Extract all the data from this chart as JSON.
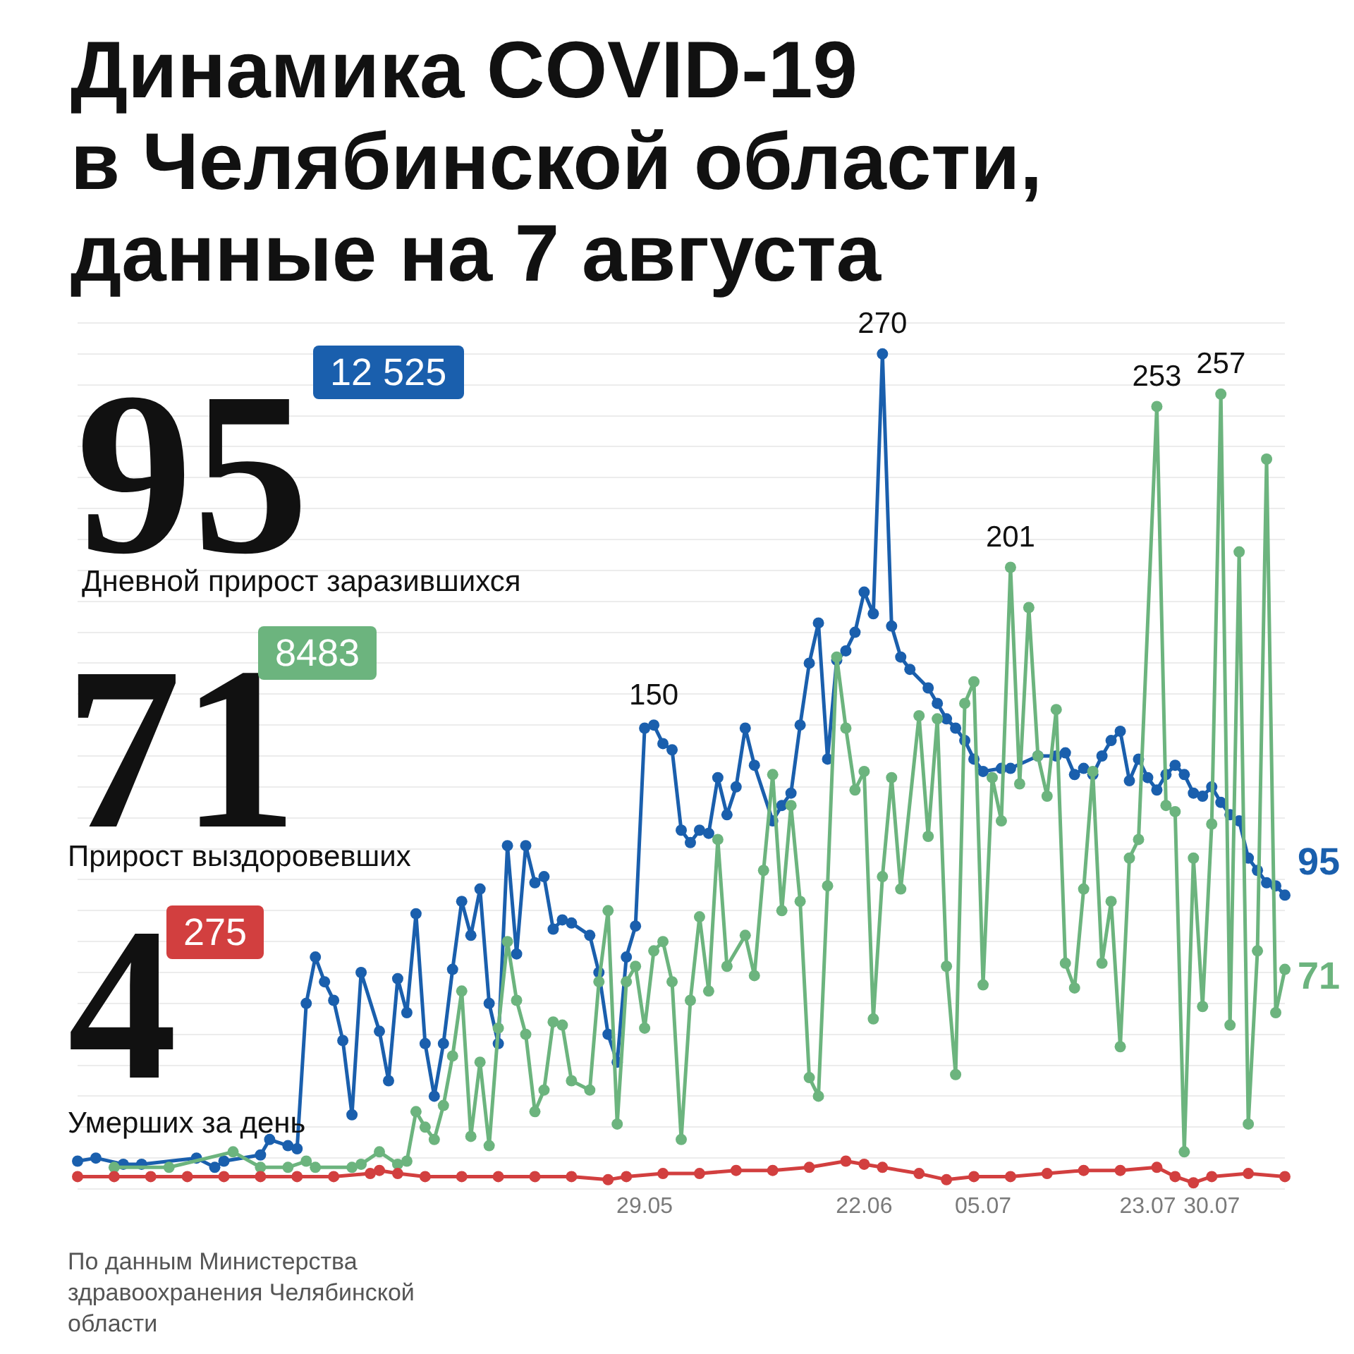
{
  "chart_data": {
    "type": "line",
    "title": "Динамика COVID-19\nв Челябинской области,\nданные на 7 августа",
    "annotations": [
      "95",
      "12 525",
      "Дневной прирост заразившихся",
      "71",
      "8483",
      "Прирост выздоровевших",
      "4",
      "275",
      "Умерших за день",
      "По данным Министерства здравоохранения Челябинской области"
    ],
    "xlim": [
      "--03-28",
      "--08-07"
    ],
    "xticks": [
      {
        "value": "--05-29",
        "label": "29.05"
      },
      {
        "value": "--06-22",
        "label": "22.06"
      },
      {
        "value": "--07-05",
        "label": "05.07"
      },
      {
        "value": "--07-23",
        "label": "23.07"
      },
      {
        "value": "--07-30",
        "label": "30.07"
      }
    ],
    "ylim": [
      0,
      280
    ],
    "yticks": [
      {
        "value": 0,
        "label": null
      },
      {
        "value": 10,
        "label": null
      },
      {
        "value": 20,
        "label": null
      },
      {
        "value": 30,
        "label": null
      },
      {
        "value": 40,
        "label": null
      },
      {
        "value": 50,
        "label": null
      },
      {
        "value": 60,
        "label": null
      },
      {
        "value": 70,
        "label": null
      },
      {
        "value": 80,
        "label": null
      },
      {
        "value": 90,
        "label": null
      },
      {
        "value": 100,
        "label": null
      },
      {
        "value": 110,
        "label": null
      },
      {
        "value": 120,
        "label": null
      },
      {
        "value": 130,
        "label": null
      },
      {
        "value": 140,
        "label": null
      },
      {
        "value": 150,
        "label": null
      },
      {
        "value": 160,
        "label": null
      },
      {
        "value": 170,
        "label": null
      },
      {
        "value": 180,
        "label": null
      },
      {
        "value": 190,
        "label": null
      },
      {
        "value": 200,
        "label": null
      },
      {
        "value": 210,
        "label": null
      },
      {
        "value": 220,
        "label": null
      },
      {
        "value": 230,
        "label": null
      },
      {
        "value": 240,
        "label": null
      },
      {
        "value": 250,
        "label": null
      },
      {
        "value": 260,
        "label": null
      },
      {
        "value": 270,
        "label": null
      },
      {
        "value": 280,
        "label": null
      }
    ],
    "grid": "y",
    "tick_labels": "x",
    "marker": "circle",
    "line_style": "solid",
    "series": [
      {
        "color": "#1a5fad",
        "x": [
          "--03-28",
          "--03-30",
          "--04-02",
          "--04-04",
          "--04-10",
          "--04-12",
          "--04-13",
          "--04-17",
          "--04-18",
          "--04-20",
          "--04-21",
          "--04-22",
          "--04-23",
          "--04-24",
          "--04-25",
          "--04-26",
          "--04-27",
          "--04-28",
          "--04-30",
          "--05-01",
          "--05-02",
          "--05-03",
          "--05-04",
          "--05-05",
          "--05-06",
          "--05-07",
          "--05-08",
          "--05-09",
          "--05-10",
          "--05-11",
          "--05-12",
          "--05-13",
          "--05-14",
          "--05-15",
          "--05-16",
          "--05-17",
          "--05-18",
          "--05-19",
          "--05-20",
          "--05-21",
          "--05-23",
          "--05-24",
          "--05-25",
          "--05-26",
          "--05-27",
          "--05-28",
          "--05-29",
          "--05-30",
          "--05-31",
          "--06-01",
          "--06-02",
          "--06-03",
          "--06-04",
          "--06-05",
          "--06-06",
          "--06-07",
          "--06-08",
          "--06-09",
          "--06-10",
          "--06-12",
          "--06-13",
          "--06-14",
          "--06-15",
          "--06-16",
          "--06-17",
          "--06-18",
          "--06-19",
          "--06-20",
          "--06-21",
          "--06-22",
          "--06-23",
          "--06-24",
          "--06-25",
          "--06-26",
          "--06-27",
          "--06-29",
          "--06-30",
          "--07-01",
          "--07-02",
          "--07-03",
          "--07-04",
          "--07-05",
          "--07-07",
          "--07-08",
          "--07-11",
          "--07-13",
          "--07-14",
          "--07-15",
          "--07-16",
          "--07-17",
          "--07-18",
          "--07-19",
          "--07-20",
          "--07-21",
          "--07-22",
          "--07-23",
          "--07-24",
          "--07-25",
          "--07-26",
          "--07-27",
          "--07-28",
          "--07-29",
          "--07-30",
          "--07-31",
          "--08-01",
          "--08-02",
          "--08-03",
          "--08-04",
          "--08-05",
          "--08-06",
          "--08-07"
        ],
        "values": [
          9,
          10,
          8,
          8,
          10,
          7,
          9,
          11,
          16,
          14,
          13,
          60,
          75,
          67,
          61,
          48,
          24,
          70,
          51,
          35,
          68,
          57,
          89,
          47,
          30,
          47,
          71,
          93,
          82,
          97,
          60,
          47,
          111,
          76,
          111,
          99,
          101,
          84,
          87,
          86,
          82,
          70,
          50,
          41,
          75,
          85,
          149,
          150,
          144,
          142,
          116,
          112,
          116,
          115,
          133,
          121,
          130,
          149,
          137,
          119,
          124,
          128,
          150,
          170,
          183,
          139,
          171,
          174,
          180,
          193,
          186,
          270,
          182,
          172,
          168,
          162,
          157,
          152,
          149,
          145,
          139,
          135,
          136,
          136,
          140,
          140,
          141,
          134,
          136,
          134,
          140,
          145,
          148,
          132,
          139,
          133,
          129,
          134,
          137,
          134,
          128,
          127,
          130,
          125,
          121,
          119,
          107,
          103,
          99,
          98,
          95
        ],
        "value_labels": [
          null,
          null,
          null,
          null,
          null,
          null,
          null,
          null,
          null,
          null,
          null,
          null,
          null,
          null,
          null,
          null,
          null,
          null,
          null,
          null,
          null,
          null,
          null,
          null,
          null,
          null,
          null,
          null,
          null,
          null,
          null,
          null,
          null,
          null,
          null,
          null,
          null,
          null,
          null,
          null,
          null,
          null,
          null,
          null,
          null,
          null,
          null,
          "150",
          null,
          null,
          null,
          null,
          null,
          null,
          null,
          null,
          null,
          null,
          null,
          null,
          null,
          null,
          null,
          null,
          null,
          null,
          null,
          null,
          null,
          null,
          null,
          "270",
          null,
          null,
          null,
          null,
          null,
          null,
          null,
          null,
          null,
          null,
          null,
          null,
          null,
          null,
          null,
          null,
          null,
          null,
          null,
          null,
          null,
          null,
          null,
          null,
          null,
          null,
          null,
          null,
          null,
          null,
          null,
          null,
          null,
          null,
          null,
          null,
          null,
          null,
          "95"
        ]
      },
      {
        "color": "#6cb47e",
        "x": [
          "--04-01",
          "--04-07",
          "--04-14",
          "--04-17",
          "--04-20",
          "--04-22",
          "--04-23",
          "--04-27",
          "--04-28",
          "--04-30",
          "--05-02",
          "--05-03",
          "--05-04",
          "--05-05",
          "--05-06",
          "--05-07",
          "--05-08",
          "--05-09",
          "--05-10",
          "--05-11",
          "--05-12",
          "--05-13",
          "--05-14",
          "--05-15",
          "--05-16",
          "--05-17",
          "--05-18",
          "--05-19",
          "--05-20",
          "--05-21",
          "--05-23",
          "--05-24",
          "--05-25",
          "--05-26",
          "--05-27",
          "--05-28",
          "--05-29",
          "--05-30",
          "--05-31",
          "--06-01",
          "--06-02",
          "--06-03",
          "--06-04",
          "--06-05",
          "--06-06",
          "--06-07",
          "--06-09",
          "--06-10",
          "--06-11",
          "--06-12",
          "--06-13",
          "--06-14",
          "--06-15",
          "--06-16",
          "--06-17",
          "--06-18",
          "--06-19",
          "--06-20",
          "--06-21",
          "--06-22",
          "--06-23",
          "--06-24",
          "--06-25",
          "--06-26",
          "--06-28",
          "--06-29",
          "--06-30",
          "--07-01",
          "--07-02",
          "--07-03",
          "--07-04",
          "--07-05",
          "--07-06",
          "--07-07",
          "--07-08",
          "--07-09",
          "--07-10",
          "--07-11",
          "--07-12",
          "--07-13",
          "--07-14",
          "--07-15",
          "--07-16",
          "--07-17",
          "--07-18",
          "--07-19",
          "--07-20",
          "--07-21",
          "--07-22",
          "--07-24",
          "--07-25",
          "--07-26",
          "--07-27",
          "--07-28",
          "--07-29",
          "--07-30",
          "--07-31",
          "--08-01",
          "--08-02",
          "--08-03",
          "--08-04",
          "--08-05",
          "--08-06",
          "--08-07"
        ],
        "values": [
          7,
          7,
          12,
          7,
          7,
          9,
          7,
          7,
          8,
          12,
          8,
          9,
          25,
          20,
          16,
          27,
          43,
          64,
          17,
          41,
          14,
          52,
          80,
          61,
          50,
          25,
          32,
          54,
          53,
          35,
          32,
          67,
          90,
          21,
          67,
          72,
          52,
          77,
          80,
          67,
          16,
          61,
          88,
          64,
          113,
          72,
          82,
          69,
          103,
          134,
          90,
          124,
          93,
          36,
          30,
          98,
          172,
          149,
          129,
          135,
          55,
          101,
          133,
          97,
          153,
          114,
          152,
          72,
          37,
          157,
          164,
          66,
          133,
          119,
          201,
          131,
          188,
          140,
          127,
          155,
          73,
          65,
          97,
          135,
          73,
          93,
          46,
          107,
          113,
          253,
          124,
          122,
          12,
          107,
          59,
          118,
          257,
          53,
          206,
          21,
          77,
          236,
          57,
          71
        ],
        "value_labels": [
          null,
          null,
          null,
          null,
          null,
          null,
          null,
          null,
          null,
          null,
          null,
          null,
          null,
          null,
          null,
          null,
          null,
          null,
          null,
          null,
          null,
          null,
          null,
          null,
          null,
          null,
          null,
          null,
          null,
          null,
          null,
          null,
          null,
          null,
          null,
          null,
          null,
          null,
          null,
          null,
          null,
          null,
          null,
          null,
          null,
          null,
          null,
          null,
          null,
          null,
          null,
          null,
          null,
          null,
          null,
          null,
          null,
          null,
          null,
          null,
          null,
          null,
          null,
          null,
          null,
          null,
          null,
          null,
          null,
          null,
          null,
          null,
          null,
          null,
          "201",
          null,
          null,
          null,
          null,
          null,
          null,
          null,
          null,
          null,
          null,
          null,
          null,
          null,
          null,
          "253",
          null,
          null,
          null,
          null,
          null,
          null,
          "257",
          null,
          null,
          null,
          null,
          null,
          null,
          "71"
        ]
      },
      {
        "color": "#d23f3f",
        "x": [
          "--03-28",
          "--04-01",
          "--04-05",
          "--04-09",
          "--04-13",
          "--04-17",
          "--04-21",
          "--04-25",
          "--04-29",
          "--04-30",
          "--05-02",
          "--05-05",
          "--05-09",
          "--05-13",
          "--05-17",
          "--05-21",
          "--05-25",
          "--05-27",
          "--05-31",
          "--06-04",
          "--06-08",
          "--06-12",
          "--06-16",
          "--06-20",
          "--06-22",
          "--06-24",
          "--06-28",
          "--07-01",
          "--07-04",
          "--07-08",
          "--07-12",
          "--07-16",
          "--07-20",
          "--07-24",
          "--07-26",
          "--07-28",
          "--07-30",
          "--08-03",
          "--08-07"
        ],
        "values": [
          4,
          4,
          4,
          4,
          4,
          4,
          4,
          4,
          5,
          6,
          5,
          4,
          4,
          4,
          4,
          4,
          3,
          4,
          5,
          5,
          6,
          6,
          7,
          9,
          8,
          7,
          5,
          3,
          4,
          4,
          5,
          6,
          6,
          7,
          4,
          2,
          4,
          5,
          4
        ]
      }
    ]
  }
}
